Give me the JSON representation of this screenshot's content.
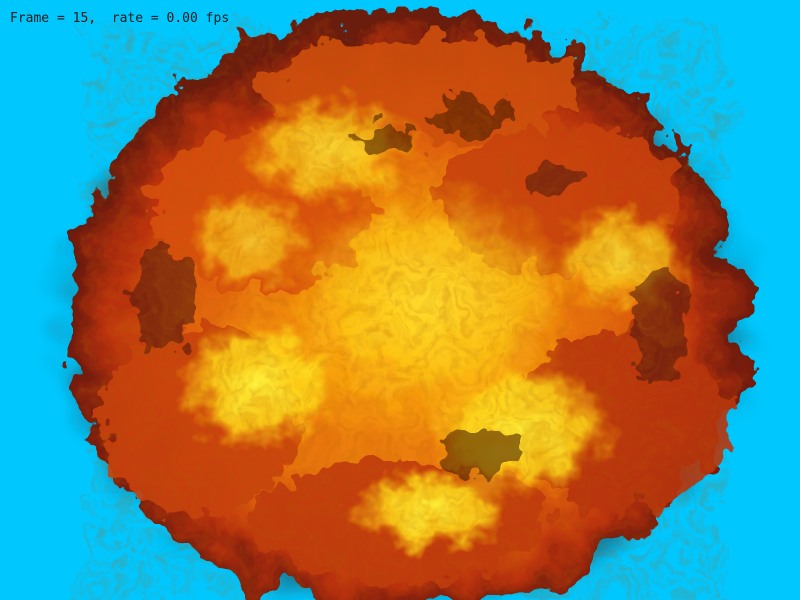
{
  "hud": {
    "status_text": "Frame = 15,  rate = 0.00 fps"
  },
  "scene": {
    "subject": "explosion-fireball",
    "colors": {
      "background": "#00c8ff",
      "smoke_dark": "#3a1e12",
      "fire_deep": "#8a1e04",
      "fire_red": "#c83a06",
      "fire_orange": "#f07a0a",
      "fire_amber": "#ffb00c",
      "fire_yellow": "#ffee10",
      "fire_core": "#fff23a"
    }
  }
}
